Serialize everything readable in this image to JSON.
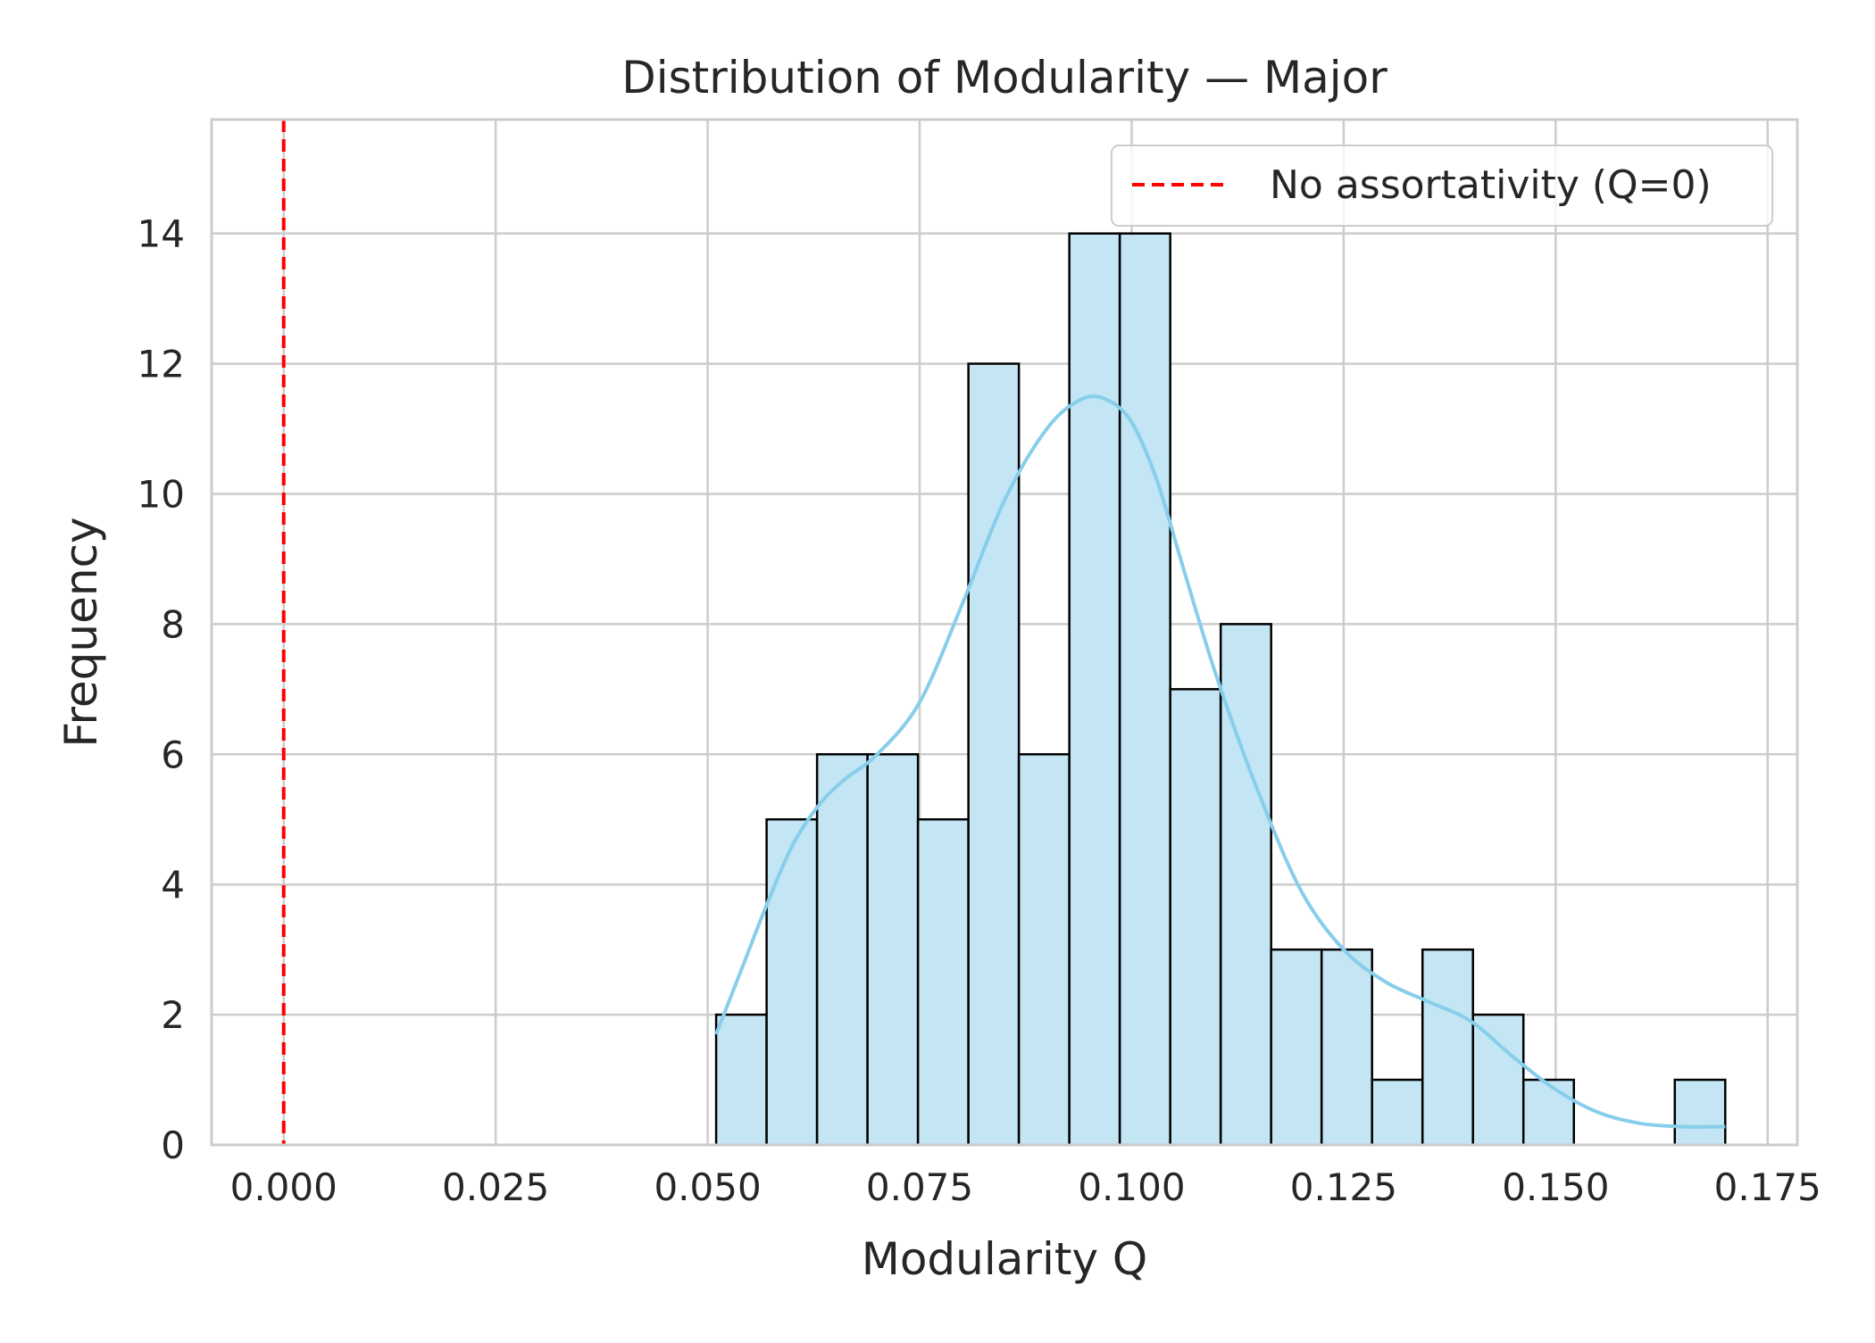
{
  "chart_data": {
    "type": "bar",
    "title": "Distribution of Modularity — Major",
    "xlabel": "Modularity Q",
    "ylabel": "Frequency",
    "xlim": [
      -0.0085,
      0.1785
    ],
    "ylim": [
      0,
      15.75
    ],
    "xticks": [
      0.0,
      0.025,
      0.05,
      0.075,
      0.1,
      0.125,
      0.15,
      0.175
    ],
    "xtick_labels": [
      "0.000",
      "0.025",
      "0.050",
      "0.075",
      "0.100",
      "0.125",
      "0.150",
      "0.175"
    ],
    "yticks": [
      0,
      2,
      4,
      6,
      8,
      10,
      12,
      14
    ],
    "ytick_labels": [
      "0",
      "2",
      "4",
      "6",
      "8",
      "10",
      "12",
      "14"
    ],
    "grid": true,
    "legend_position": "top-right",
    "histogram": {
      "bin_start": 0.051,
      "bin_width": 0.00595,
      "counts": [
        2,
        5,
        6,
        6,
        5,
        12,
        6,
        14,
        14,
        7,
        8,
        3,
        3,
        1,
        3,
        2,
        1,
        0,
        0,
        1
      ],
      "fill_color": "#c3e5f4",
      "edge_color": "#000000"
    },
    "kde": {
      "color": "#87ceeb",
      "x": [
        0.051,
        0.054,
        0.057,
        0.06,
        0.063,
        0.066,
        0.07,
        0.075,
        0.08,
        0.085,
        0.09,
        0.094,
        0.097,
        0.1,
        0.103,
        0.106,
        0.11,
        0.115,
        0.12,
        0.125,
        0.13,
        0.135,
        0.14,
        0.145,
        0.15,
        0.155,
        0.16,
        0.165,
        0.17
      ],
      "y": [
        1.7,
        2.7,
        3.7,
        4.6,
        5.2,
        5.6,
        6.0,
        6.8,
        8.3,
        9.9,
        11.0,
        11.45,
        11.45,
        11.1,
        10.2,
        8.9,
        7.2,
        5.4,
        3.9,
        3.0,
        2.5,
        2.2,
        1.9,
        1.35,
        0.85,
        0.5,
        0.33,
        0.28,
        0.28
      ]
    },
    "reference_line": {
      "x": 0,
      "label": "No assortativity (Q=0)",
      "color": "#ff0000",
      "style": "dashed"
    }
  }
}
